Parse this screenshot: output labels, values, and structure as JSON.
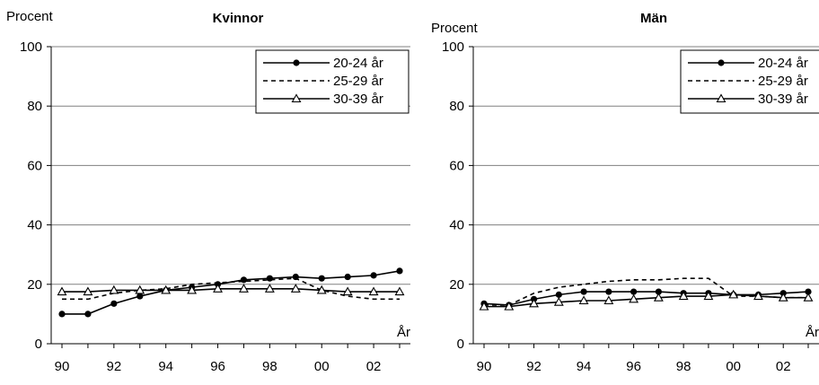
{
  "chart_data": [
    {
      "type": "line",
      "title": "Kvinnor",
      "ylabel": "Procent",
      "xlabel": "År",
      "ylim": [
        0,
        100
      ],
      "yticks": [
        "0",
        "20",
        "40",
        "60",
        "80",
        "100"
      ],
      "xtick_labels": [
        "90",
        "92",
        "94",
        "96",
        "98",
        "00",
        "02"
      ],
      "x": [
        1990,
        1991,
        1992,
        1993,
        1994,
        1995,
        1996,
        1997,
        1998,
        1999,
        2000,
        2001,
        2002,
        2003
      ],
      "grid": "horizontal",
      "legend_position": "top-right",
      "series": [
        {
          "name": "20-24 år",
          "marker": "circle",
          "style": "solid",
          "values": [
            10,
            10,
            13.5,
            16,
            18,
            19,
            20,
            21.5,
            22,
            22.5,
            22,
            22.5,
            23,
            24.5
          ]
        },
        {
          "name": "25-29 år",
          "marker": "none",
          "style": "dashed",
          "values": [
            15,
            15,
            17,
            18,
            18.5,
            20,
            20.5,
            21,
            21.5,
            22,
            18,
            16,
            15,
            15
          ]
        },
        {
          "name": "30-39 år",
          "marker": "triangle",
          "style": "solid",
          "values": [
            17.5,
            17.5,
            18,
            18,
            18,
            18,
            18.5,
            18.5,
            18.5,
            18.5,
            18,
            17.5,
            17.5,
            17.5
          ]
        }
      ]
    },
    {
      "type": "line",
      "title": "Män",
      "ylabel": "Procent",
      "xlabel": "År",
      "ylim": [
        0,
        100
      ],
      "yticks": [
        "0",
        "20",
        "40",
        "60",
        "80",
        "100"
      ],
      "xtick_labels": [
        "90",
        "92",
        "94",
        "96",
        "98",
        "00",
        "02"
      ],
      "x": [
        1990,
        1991,
        1992,
        1993,
        1994,
        1995,
        1996,
        1997,
        1998,
        1999,
        2000,
        2001,
        2002,
        2003
      ],
      "grid": "horizontal",
      "legend_position": "top-right",
      "series": [
        {
          "name": "20-24 år",
          "marker": "circle",
          "style": "solid",
          "values": [
            13.5,
            13,
            15,
            16.5,
            17.5,
            17.5,
            17.5,
            17.5,
            17,
            17,
            16.5,
            16.5,
            17,
            17.5
          ]
        },
        {
          "name": "25-29 år",
          "marker": "none",
          "style": "dashed",
          "values": [
            13,
            13,
            17,
            19,
            20,
            21,
            21.5,
            21.5,
            22,
            22,
            16,
            16,
            15.5,
            15.5
          ]
        },
        {
          "name": "30-39 år",
          "marker": "triangle",
          "style": "solid",
          "values": [
            12.5,
            12.5,
            13.5,
            14,
            14.5,
            14.5,
            15,
            15.5,
            16,
            16,
            16.5,
            16,
            15.5,
            15.5
          ]
        }
      ]
    }
  ],
  "colors": {
    "axis": "#000000",
    "grid": "#808080",
    "series": "#000000"
  }
}
